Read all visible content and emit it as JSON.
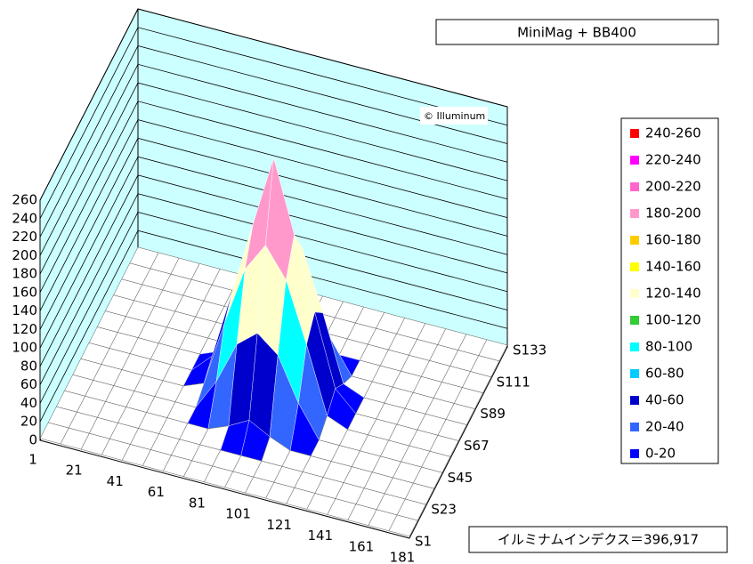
{
  "chart_data": {
    "type": "surface",
    "title": "MiniMag + BB400",
    "watermark": "© Illuminum",
    "footer": "イルミナムインデクス＝396,917",
    "categories": [
      1,
      null,
      21,
      null,
      41,
      null,
      61,
      null,
      81,
      null,
      101,
      null,
      121,
      null,
      141,
      null,
      161,
      null,
      181
    ],
    "rows": [
      "S1",
      null,
      "S23",
      null,
      "S45",
      null,
      "S67",
      null,
      "S89",
      null,
      "S111",
      null,
      "S133"
    ],
    "zlim": [
      0,
      260
    ],
    "zticks": [
      0,
      20,
      40,
      60,
      80,
      100,
      120,
      140,
      160,
      180,
      200,
      220,
      240,
      260
    ],
    "wall_color": "#ccffff",
    "bands": [
      {
        "name": "240-260",
        "range": [
          240,
          260
        ],
        "color": "#ff0000"
      },
      {
        "name": "220-240",
        "range": [
          220,
          240
        ],
        "color": "#ff00ff"
      },
      {
        "name": "200-220",
        "range": [
          200,
          220
        ],
        "color": "#ff66cc"
      },
      {
        "name": "180-200",
        "range": [
          180,
          200
        ],
        "color": "#ff99cc"
      },
      {
        "name": "160-180",
        "range": [
          160,
          180
        ],
        "color": "#ffcc00"
      },
      {
        "name": "140-160",
        "range": [
          140,
          160
        ],
        "color": "#ffff00"
      },
      {
        "name": "120-140",
        "range": [
          120,
          140
        ],
        "color": "#ffffcc"
      },
      {
        "name": "100-120",
        "range": [
          100,
          120
        ],
        "color": "#33cc33"
      },
      {
        "name": "80-100",
        "range": [
          80,
          100
        ],
        "color": "#00ffff"
      },
      {
        "name": "60-80",
        "range": [
          60,
          80
        ],
        "color": "#00ccff"
      },
      {
        "name": "40-60",
        "range": [
          40,
          60
        ],
        "color": "#0000cc"
      },
      {
        "name": "20-40",
        "range": [
          20,
          40
        ],
        "color": "#3366ff"
      },
      {
        "name": "0-20",
        "range": [
          0,
          20
        ],
        "color": "#0000ff"
      }
    ],
    "values": [
      [
        2,
        2,
        2,
        2,
        2,
        2,
        2,
        2,
        2,
        2,
        2,
        2,
        2,
        2,
        2,
        2,
        2,
        2,
        2
      ],
      [
        2,
        2,
        2,
        2,
        2,
        2,
        2,
        2,
        2,
        2,
        2,
        2,
        2,
        2,
        2,
        2,
        2,
        2,
        2
      ],
      [
        2,
        2,
        2,
        2,
        2,
        2,
        2,
        2,
        2,
        2,
        2,
        2,
        2,
        2,
        2,
        2,
        2,
        2,
        2
      ],
      [
        2,
        2,
        2,
        2,
        2,
        2,
        2,
        2,
        11,
        23,
        11,
        2,
        2,
        2,
        2,
        2,
        2,
        2,
        2
      ],
      [
        2,
        2,
        2,
        2,
        2,
        2,
        2,
        36,
        82,
        100,
        82,
        36,
        2,
        2,
        2,
        2,
        2,
        2,
        2
      ],
      [
        2,
        2,
        2,
        2,
        2,
        2,
        11,
        82,
        146,
        178,
        146,
        82,
        11,
        2,
        2,
        2,
        2,
        2,
        2
      ],
      [
        2,
        2,
        2,
        2,
        2,
        2,
        23,
        100,
        178,
        255,
        178,
        100,
        23,
        2,
        2,
        2,
        2,
        2,
        2
      ],
      [
        2,
        2,
        2,
        2,
        2,
        2,
        11,
        82,
        146,
        178,
        146,
        82,
        11,
        2,
        2,
        2,
        2,
        2,
        2
      ],
      [
        2,
        2,
        2,
        2,
        2,
        2,
        2,
        36,
        82,
        100,
        82,
        36,
        2,
        2,
        2,
        2,
        2,
        2,
        2
      ],
      [
        2,
        2,
        2,
        2,
        2,
        2,
        2,
        2,
        11,
        23,
        11,
        2,
        2,
        2,
        2,
        2,
        2,
        2,
        2
      ],
      [
        2,
        2,
        2,
        2,
        2,
        2,
        2,
        2,
        2,
        2,
        2,
        2,
        2,
        2,
        2,
        2,
        2,
        2,
        2
      ],
      [
        2,
        2,
        2,
        2,
        2,
        2,
        2,
        2,
        2,
        2,
        2,
        2,
        2,
        2,
        2,
        2,
        2,
        2,
        2
      ],
      [
        2,
        2,
        2,
        2,
        2,
        2,
        2,
        2,
        2,
        2,
        2,
        2,
        2,
        2,
        2,
        2,
        2,
        2,
        2
      ]
    ]
  }
}
